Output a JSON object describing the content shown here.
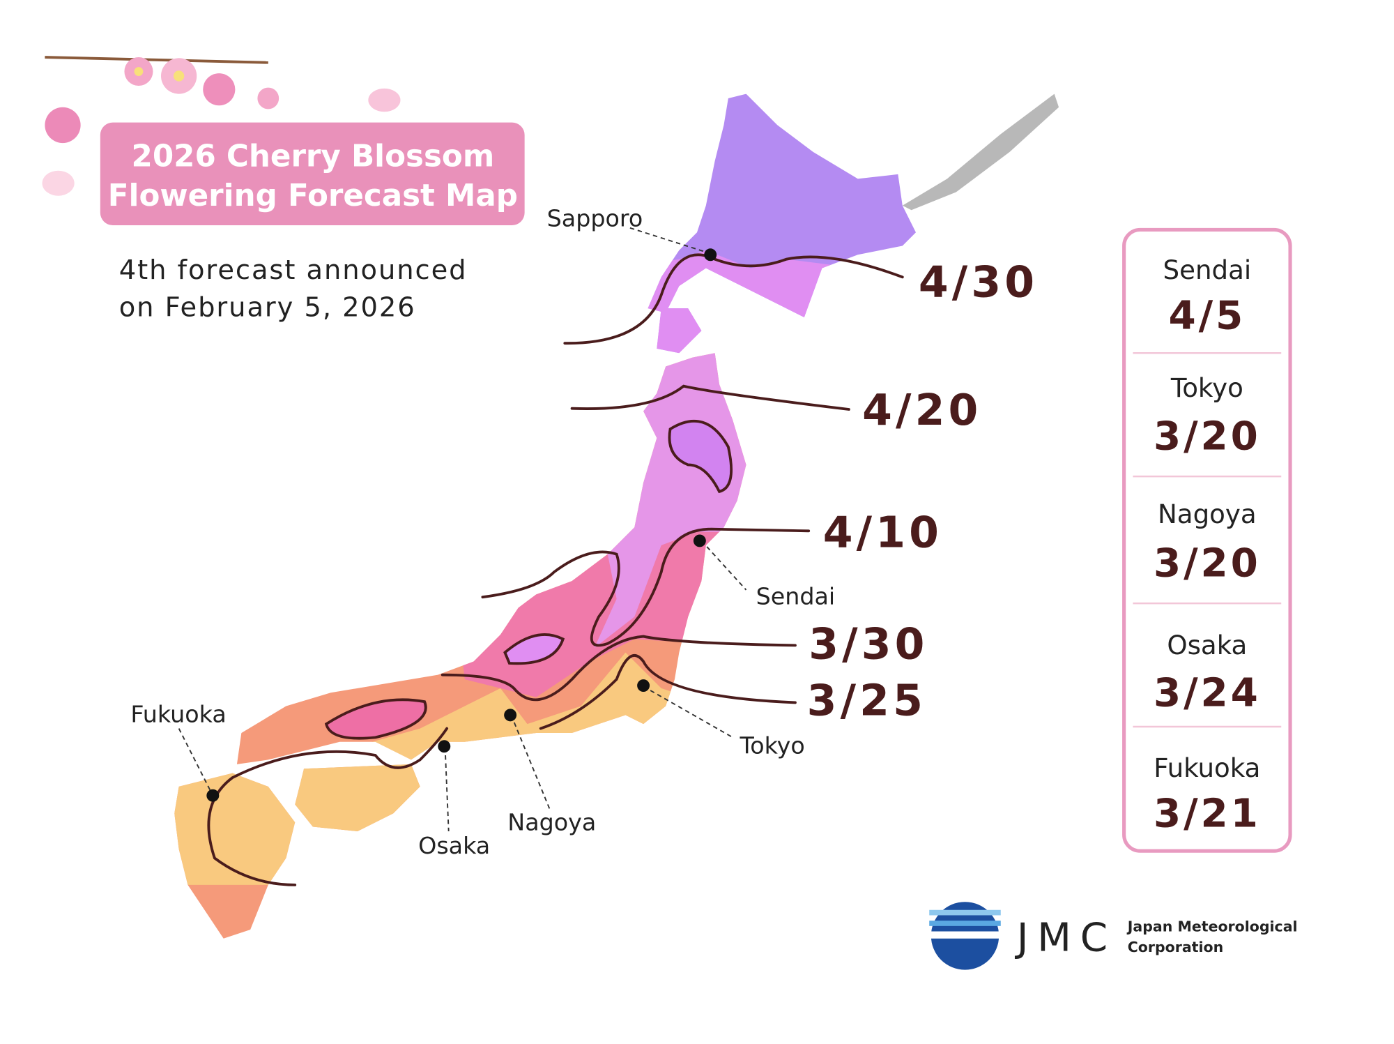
{
  "title": [
    "2026 Cherry Blossom",
    "Flowering Forecast Map"
  ],
  "subtitle": [
    "4th forecast announced",
    "on February 5, 2026"
  ],
  "cities": [
    "Sapporo",
    "Sendai",
    "Tokyo",
    "Nagoya",
    "Osaka",
    "Fukuoka"
  ],
  "isolines": [
    "4/30",
    "4/20",
    "4/10",
    "3/30",
    "3/25"
  ],
  "forecast_table": [
    {
      "city": "Sendai",
      "date": "4/5"
    },
    {
      "city": "Tokyo",
      "date": "3/20"
    },
    {
      "city": "Nagoya",
      "date": "3/20"
    },
    {
      "city": "Osaka",
      "date": "3/24"
    },
    {
      "city": "Fukuoka",
      "date": "3/21"
    }
  ],
  "logo": {
    "abbr": "JMC",
    "name": [
      "Japan Meteorological",
      "Corporation"
    ]
  }
}
